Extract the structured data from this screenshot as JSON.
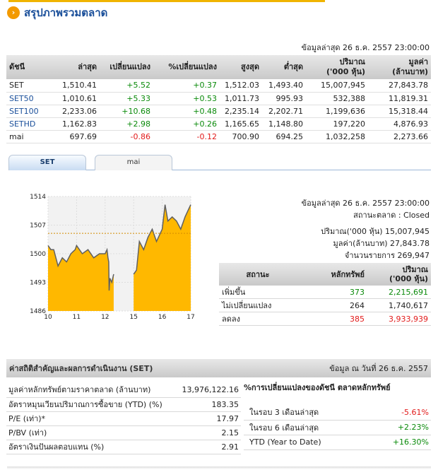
{
  "page": {
    "title": "สรุปภาพรวมตลาด",
    "bullet_icon": "chevron-right-icon"
  },
  "market_summary": {
    "asof": "ข้อมูลล่าสุด 26 ธ.ค. 2557 23:00:00",
    "headers": {
      "index": "ดัชนี",
      "last": "ล่าสุด",
      "change": "เปลี่ยนแปลง",
      "pct": "%เปลี่ยนแปลง",
      "high": "สูงสุด",
      "low": "ต่ำสุด",
      "volume": "ปริมาณ",
      "volume_unit": "('000 หุ้น)",
      "value": "มูลค่า",
      "value_unit": "(ล้านบาท)"
    },
    "rows": [
      {
        "name": "SET",
        "last": "1,510.41",
        "change": "+5.52",
        "pct": "+0.37",
        "high": "1,512.03",
        "low": "1,493.40",
        "volume": "15,007,945",
        "value": "27,843.78",
        "link": false,
        "dir": "pos"
      },
      {
        "name": "SET50",
        "last": "1,010.61",
        "change": "+5.33",
        "pct": "+0.53",
        "high": "1,011.73",
        "low": "995.93",
        "volume": "532,388",
        "value": "11,819.31",
        "link": true,
        "dir": "pos"
      },
      {
        "name": "SET100",
        "last": "2,233.06",
        "change": "+10.68",
        "pct": "+0.48",
        "high": "2,235.14",
        "low": "2,202.71",
        "volume": "1,199,636",
        "value": "15,318.44",
        "link": true,
        "dir": "pos"
      },
      {
        "name": "SETHD",
        "last": "1,162.83",
        "change": "+2.98",
        "pct": "+0.26",
        "high": "1,165.65",
        "low": "1,148.80",
        "volume": "197,220",
        "value": "4,876.93",
        "link": true,
        "dir": "pos"
      },
      {
        "name": "mai",
        "last": "697.69",
        "change": "-0.86",
        "pct": "-0.12",
        "high": "700.90",
        "low": "694.25",
        "volume": "1,032,258",
        "value": "2,273.66",
        "link": false,
        "dir": "neg"
      }
    ]
  },
  "tabs": [
    {
      "label": "SET",
      "active": true
    },
    {
      "label": "mai",
      "active": false
    }
  ],
  "chart_data": {
    "type": "area",
    "x_tick_labels": [
      "10",
      "11",
      "12",
      "15",
      "16",
      "17"
    ],
    "y_tick_labels": [
      "1514",
      "1507",
      "1500",
      "1493",
      "1486"
    ],
    "ylim": [
      1486,
      1514
    ],
    "reference_line": 1505,
    "grid": true,
    "fill_color": "#ffb800",
    "line_color": "#606060",
    "series": [
      {
        "x": [
          10.0,
          10.1,
          10.2,
          10.35,
          10.5,
          10.65,
          10.8,
          10.95,
          11.0,
          11.2,
          11.4,
          11.6,
          11.8,
          12.0,
          12.2,
          12.3,
          12.38,
          12.42,
          12.5,
          12.7,
          12.9,
          15.0,
          15.1,
          15.2,
          15.35,
          15.5,
          15.65,
          15.8,
          16.0,
          16.1,
          16.2,
          16.35,
          16.5,
          16.65,
          16.8,
          17.0
        ],
        "y": [
          1502,
          1501,
          1501,
          1497,
          1499,
          1498,
          1500,
          1501,
          1502,
          1500,
          1501,
          1499,
          1500,
          1500,
          1501,
          1499,
          1498,
          1491,
          1494,
          1493,
          1495,
          1495,
          1496,
          1503,
          1501,
          1504,
          1506,
          1503,
          1506,
          1512,
          1508,
          1509,
          1508,
          1506,
          1509,
          1512
        ]
      }
    ]
  },
  "snapshot": {
    "asof": "ข้อมูลล่าสุด 26 ธ.ค. 2557 23:00:00",
    "status_label": "สถานะตลาด",
    "status_value": "Closed",
    "volume_label": "ปริมาณ('000 หุ้น)",
    "volume_value": "15,007,945",
    "value_label": "มูลค่า(ล้านบาท)",
    "value_value": "27,843.78",
    "trades_label": "จำนวนรายการ",
    "trades_value": "269,947"
  },
  "breadth": {
    "headers": {
      "status": "สถานะ",
      "securities": "หลักทรัพย์",
      "volume": "ปริมาณ",
      "volume_unit": "('000 หุ้น)"
    },
    "rows": [
      {
        "label": "เพิ่มขึ้น",
        "count": "373",
        "volume": "2,215,691",
        "dir": "pos"
      },
      {
        "label": "ไม่เปลี่ยนแปลง",
        "count": "264",
        "volume": "1,740,617",
        "dir": "neutral"
      },
      {
        "label": "ลดลง",
        "count": "385",
        "volume": "3,933,939",
        "dir": "neg"
      }
    ]
  },
  "stats": {
    "title": "ค่าสถิติสำคัญและผลการดำเนินงาน (SET)",
    "asof": "ข้อมูล ณ วันที่ 26 ธ.ค. 2557",
    "rows": [
      {
        "label": "มูลค่าหลักทรัพย์ตามราคาตลาด (ล้านบาท)",
        "value": "13,976,122.16"
      },
      {
        "label": "อัตราหมุนเวียนปริมาณการซื้อขาย (YTD) (%)",
        "value": "183.35"
      },
      {
        "label": "P/E (เท่า)*",
        "value": "17.97"
      },
      {
        "label": "P/BV (เท่า)",
        "value": "2.15"
      },
      {
        "label": "อัตราเงินปันผลตอบแทน (%)",
        "value": "2.91"
      }
    ],
    "change_title": "%การเปลี่ยนแปลงของดัชนี ตลาดหลักทรัพย์",
    "changes": [
      {
        "label": "ในรอบ 3 เดือนล่าสุด",
        "value": "-5.61%",
        "dir": "neg"
      },
      {
        "label": "ในรอบ 6 เดือนล่าสุด",
        "value": "+2.23%",
        "dir": "pos"
      },
      {
        "label": "YTD (Year to Date)",
        "value": "+16.30%",
        "dir": "pos"
      }
    ]
  }
}
